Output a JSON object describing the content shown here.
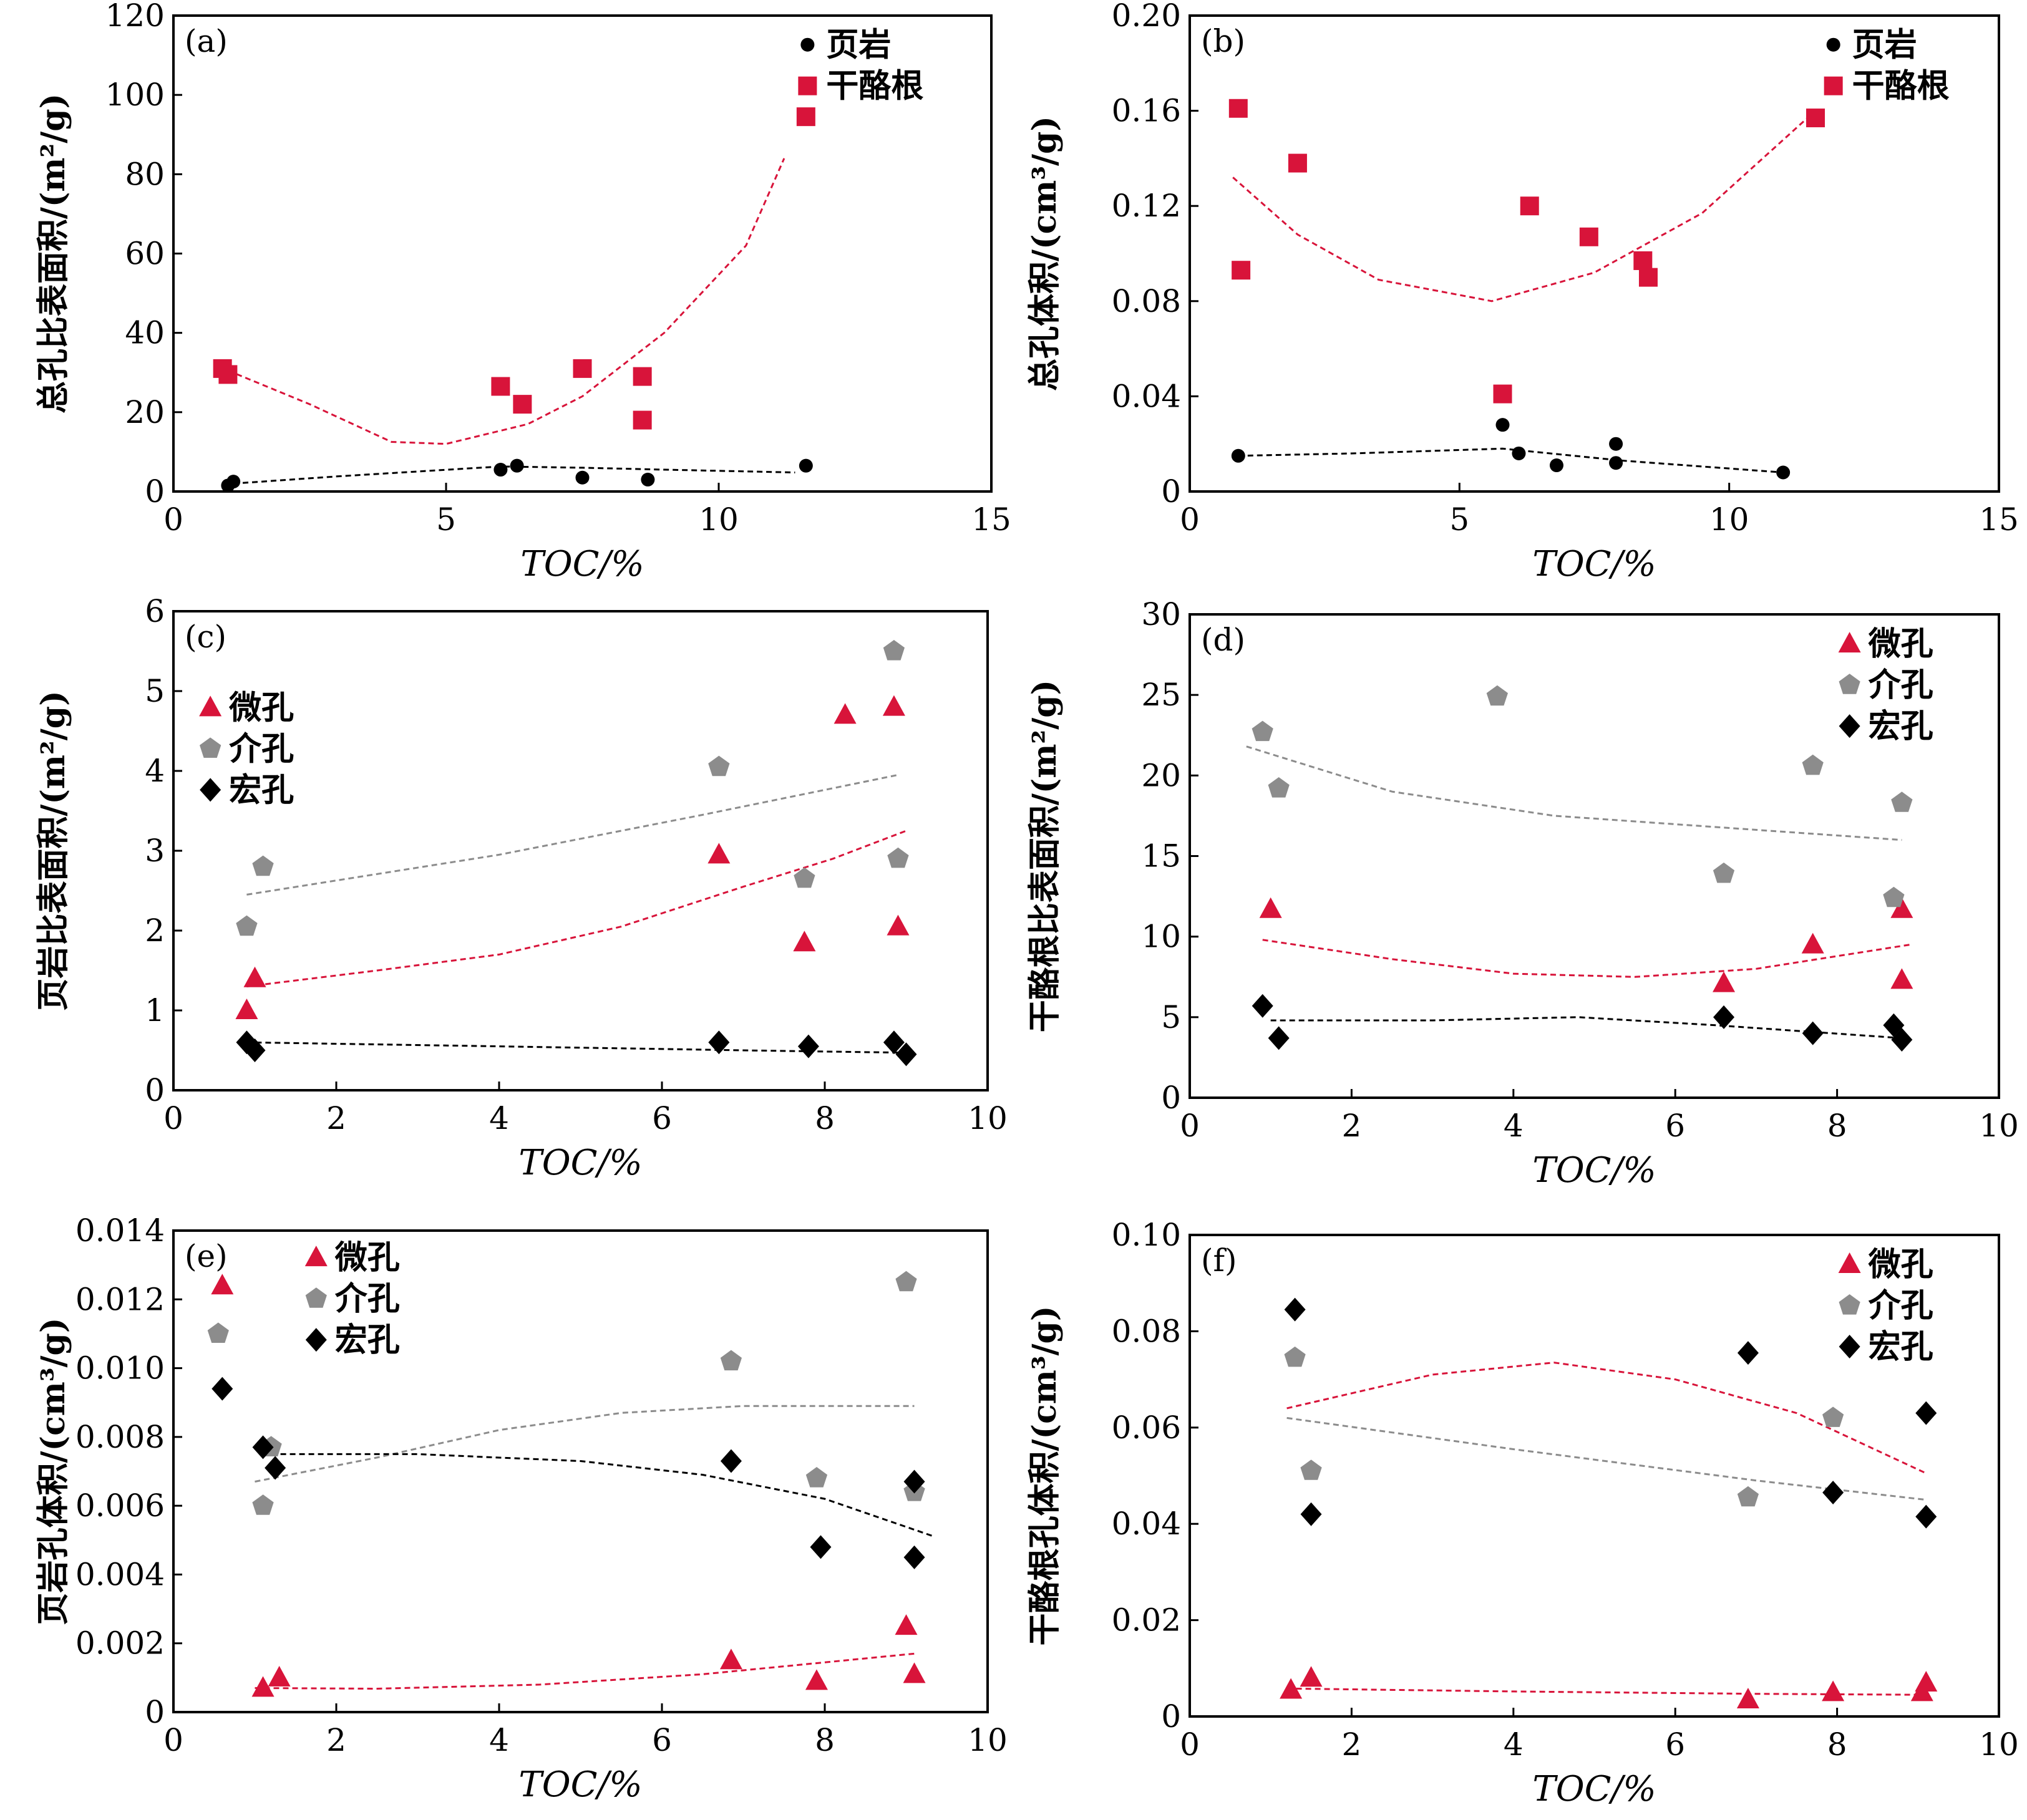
{
  "colors": {
    "red": "#d8143a",
    "gray": "#8c8c8c",
    "black": "#000000"
  },
  "chart_data": [
    {
      "type": "scatter",
      "tag": "(a)",
      "xlabel": "TOC/%",
      "ylabel": "总孔比表面积/(m²/g)",
      "xlim": [
        0,
        15
      ],
      "ylim": [
        0,
        120
      ],
      "xticks": [
        0,
        5,
        10,
        15
      ],
      "yticks": [
        0,
        20,
        40,
        60,
        80,
        100,
        120
      ],
      "legend_position": "top-right",
      "series": [
        {
          "name": "页岩",
          "marker": "circle",
          "color": "#000000",
          "points": [
            [
              1.0,
              1.5
            ],
            [
              1.1,
              2.5
            ],
            [
              6.0,
              5.5
            ],
            [
              6.3,
              6.5
            ],
            [
              7.5,
              3.5
            ],
            [
              8.7,
              3.0
            ],
            [
              11.6,
              6.5
            ]
          ],
          "trend": [
            [
              1.1,
              2.0
            ],
            [
              3.0,
              3.8
            ],
            [
              6.0,
              6.3
            ],
            [
              7.5,
              6.0
            ],
            [
              9.0,
              5.5
            ],
            [
              11.4,
              4.8
            ]
          ]
        },
        {
          "name": "干酪根",
          "marker": "square",
          "color": "#d8143a",
          "points": [
            [
              0.9,
              31
            ],
            [
              1.0,
              29.5
            ],
            [
              6.0,
              26.5
            ],
            [
              6.4,
              22
            ],
            [
              7.5,
              31
            ],
            [
              8.6,
              29
            ],
            [
              8.6,
              18
            ],
            [
              11.6,
              94.5
            ]
          ],
          "trend": [
            [
              1.0,
              30.5
            ],
            [
              2.5,
              22
            ],
            [
              4.0,
              12.5
            ],
            [
              5.0,
              12
            ],
            [
              6.5,
              17
            ],
            [
              7.5,
              24
            ],
            [
              9.0,
              40
            ],
            [
              10.5,
              62
            ],
            [
              11.2,
              84
            ]
          ]
        }
      ]
    },
    {
      "type": "scatter",
      "tag": "(b)",
      "xlabel": "TOC/%",
      "ylabel": "总孔体积/(cm³/g)",
      "xlim": [
        0,
        15
      ],
      "ylim": [
        0,
        0.2
      ],
      "xticks": [
        0,
        5,
        10,
        15
      ],
      "yticks": [
        0,
        0.04,
        0.08,
        0.12,
        0.16,
        0.2
      ],
      "ytick_labels": [
        "0",
        "0.04",
        "0.08",
        "0.12",
        "0.16",
        "0.20"
      ],
      "legend_position": "top-right",
      "series": [
        {
          "name": "页岩",
          "marker": "circle",
          "color": "#000000",
          "points": [
            [
              0.9,
              0.015
            ],
            [
              5.8,
              0.028
            ],
            [
              6.1,
              0.016
            ],
            [
              6.8,
              0.011
            ],
            [
              7.9,
              0.02
            ],
            [
              7.9,
              0.012
            ],
            [
              11.0,
              0.008
            ]
          ],
          "trend": [
            [
              0.9,
              0.015
            ],
            [
              3.0,
              0.016
            ],
            [
              5.8,
              0.018
            ],
            [
              8.0,
              0.013
            ],
            [
              11.0,
              0.008
            ]
          ]
        },
        {
          "name": "干酪根",
          "marker": "square",
          "color": "#d8143a",
          "points": [
            [
              0.9,
              0.161
            ],
            [
              0.95,
              0.093
            ],
            [
              2.0,
              0.138
            ],
            [
              5.8,
              0.041
            ],
            [
              6.3,
              0.12
            ],
            [
              7.4,
              0.107
            ],
            [
              8.4,
              0.097
            ],
            [
              8.5,
              0.09
            ],
            [
              11.6,
              0.157
            ]
          ],
          "trend": [
            [
              0.8,
              0.132
            ],
            [
              2.0,
              0.108
            ],
            [
              3.5,
              0.089
            ],
            [
              5.6,
              0.08
            ],
            [
              7.5,
              0.092
            ],
            [
              9.5,
              0.117
            ],
            [
              11.5,
              0.158
            ]
          ]
        }
      ]
    },
    {
      "type": "scatter",
      "tag": "(c)",
      "xlabel": "TOC/%",
      "ylabel": "页岩比表面积/(m²/g)",
      "xlim": [
        0,
        10
      ],
      "ylim": [
        0,
        6
      ],
      "xticks": [
        0,
        2,
        4,
        6,
        8,
        10
      ],
      "yticks": [
        0,
        1,
        2,
        3,
        4,
        5,
        6
      ],
      "legend_position": "top-left",
      "series": [
        {
          "name": "微孔",
          "marker": "triangle",
          "color": "#d8143a",
          "points": [
            [
              0.9,
              1.0
            ],
            [
              1.0,
              1.4
            ],
            [
              6.7,
              2.95
            ],
            [
              7.75,
              1.85
            ],
            [
              8.25,
              4.7
            ],
            [
              8.85,
              4.8
            ],
            [
              8.9,
              2.05
            ]
          ],
          "trend": [
            [
              0.9,
              1.3
            ],
            [
              2.5,
              1.5
            ],
            [
              4.0,
              1.7
            ],
            [
              5.5,
              2.05
            ],
            [
              7.0,
              2.55
            ],
            [
              8.1,
              2.9
            ],
            [
              9.0,
              3.25
            ]
          ]
        },
        {
          "name": "介孔",
          "marker": "pentagon",
          "color": "#8c8c8c",
          "points": [
            [
              0.9,
              2.05
            ],
            [
              1.1,
              2.8
            ],
            [
              6.7,
              4.05
            ],
            [
              7.75,
              2.65
            ],
            [
              8.85,
              5.5
            ],
            [
              8.9,
              2.9
            ]
          ],
          "trend": [
            [
              0.9,
              2.45
            ],
            [
              4.0,
              2.95
            ],
            [
              6.5,
              3.45
            ],
            [
              8.9,
              3.95
            ]
          ]
        },
        {
          "name": "宏孔",
          "marker": "diamond",
          "color": "#000000",
          "points": [
            [
              0.9,
              0.6
            ],
            [
              1.0,
              0.5
            ],
            [
              6.7,
              0.6
            ],
            [
              7.8,
              0.55
            ],
            [
              8.85,
              0.6
            ],
            [
              9.0,
              0.45
            ]
          ],
          "trend": [
            [
              0.9,
              0.6
            ],
            [
              4.0,
              0.55
            ],
            [
              7.0,
              0.5
            ],
            [
              9.0,
              0.47
            ]
          ]
        }
      ]
    },
    {
      "type": "scatter",
      "tag": "(d)",
      "xlabel": "TOC/%",
      "ylabel": "干酪根比表面积/(m²/g)",
      "xlim": [
        0,
        10
      ],
      "ylim": [
        0,
        30
      ],
      "xticks": [
        0,
        2,
        4,
        6,
        8,
        10
      ],
      "yticks": [
        0,
        5,
        10,
        15,
        20,
        25,
        30
      ],
      "legend_position": "top-right",
      "series": [
        {
          "name": "微孔",
          "marker": "triangle",
          "color": "#d8143a",
          "points": [
            [
              1.0,
              11.7
            ],
            [
              6.6,
              7.1
            ],
            [
              7.7,
              9.5
            ],
            [
              8.8,
              11.7
            ],
            [
              8.8,
              7.3
            ]
          ],
          "trend": [
            [
              0.9,
              9.8
            ],
            [
              2.5,
              8.6
            ],
            [
              4.0,
              7.7
            ],
            [
              5.5,
              7.5
            ],
            [
              7.0,
              8.0
            ],
            [
              8.9,
              9.5
            ]
          ]
        },
        {
          "name": "介孔",
          "marker": "pentagon",
          "color": "#8c8c8c",
          "points": [
            [
              0.9,
              22.7
            ],
            [
              1.1,
              19.2
            ],
            [
              3.8,
              24.9
            ],
            [
              6.6,
              13.9
            ],
            [
              7.7,
              20.6
            ],
            [
              8.7,
              12.4
            ],
            [
              8.8,
              18.3
            ]
          ],
          "trend": [
            [
              0.7,
              21.8
            ],
            [
              2.5,
              19.0
            ],
            [
              4.5,
              17.5
            ],
            [
              6.5,
              16.8
            ],
            [
              8.8,
              16.0
            ]
          ]
        },
        {
          "name": "宏孔",
          "marker": "diamond",
          "color": "#000000",
          "points": [
            [
              0.9,
              5.7
            ],
            [
              1.1,
              3.7
            ],
            [
              6.6,
              5.0
            ],
            [
              7.7,
              4.0
            ],
            [
              8.7,
              4.5
            ],
            [
              8.8,
              3.6
            ]
          ],
          "trend": [
            [
              1.0,
              4.8
            ],
            [
              3.0,
              4.8
            ],
            [
              4.8,
              5.0
            ],
            [
              6.5,
              4.5
            ],
            [
              8.8,
              3.7
            ]
          ]
        }
      ]
    },
    {
      "type": "scatter",
      "tag": "(e)",
      "xlabel": "TOC/%",
      "ylabel": "页岩孔体积/(cm³/g)",
      "xlim": [
        0,
        10
      ],
      "ylim": [
        0,
        0.014
      ],
      "xticks": [
        0,
        2,
        4,
        6,
        8,
        10
      ],
      "yticks": [
        0,
        0.002,
        0.004,
        0.006,
        0.008,
        0.01,
        0.012,
        0.014
      ],
      "ytick_labels": [
        "0",
        "0.002",
        "0.004",
        "0.006",
        "0.008",
        "0.010",
        "0.012",
        "0.014"
      ],
      "legend_position": "top-left",
      "series": [
        {
          "name": "微孔",
          "marker": "triangle",
          "color": "#d8143a",
          "points": [
            [
              0.6,
              0.0124
            ],
            [
              1.1,
              0.0007
            ],
            [
              1.3,
              0.001
            ],
            [
              6.85,
              0.0015
            ],
            [
              7.9,
              0.0009
            ],
            [
              9.0,
              0.0025
            ],
            [
              9.1,
              0.0011
            ]
          ],
          "trend": [
            [
              1.0,
              0.0007
            ],
            [
              2.5,
              0.00068
            ],
            [
              4.5,
              0.0008
            ],
            [
              6.5,
              0.0011
            ],
            [
              9.1,
              0.0017
            ]
          ]
        },
        {
          "name": "介孔",
          "marker": "pentagon",
          "color": "#8c8c8c",
          "points": [
            [
              0.55,
              0.011
            ],
            [
              1.1,
              0.006
            ],
            [
              1.2,
              0.0077
            ],
            [
              6.85,
              0.0102
            ],
            [
              7.9,
              0.0068
            ],
            [
              9.0,
              0.0125
            ],
            [
              9.1,
              0.0064
            ]
          ],
          "trend": [
            [
              1.0,
              0.0067
            ],
            [
              2.5,
              0.0074
            ],
            [
              4.0,
              0.0082
            ],
            [
              5.5,
              0.0087
            ],
            [
              7.0,
              0.0089
            ],
            [
              9.1,
              0.0089
            ]
          ]
        },
        {
          "name": "宏孔",
          "marker": "diamond",
          "color": "#000000",
          "points": [
            [
              0.6,
              0.0094
            ],
            [
              1.1,
              0.0077
            ],
            [
              1.25,
              0.0071
            ],
            [
              6.85,
              0.0073
            ],
            [
              7.95,
              0.0048
            ],
            [
              9.1,
              0.0067
            ],
            [
              9.1,
              0.0045
            ]
          ],
          "trend": [
            [
              1.2,
              0.0075
            ],
            [
              3.0,
              0.0075
            ],
            [
              5.0,
              0.0073
            ],
            [
              6.5,
              0.0069
            ],
            [
              8.0,
              0.0062
            ],
            [
              9.35,
              0.0051
            ]
          ]
        }
      ]
    },
    {
      "type": "scatter",
      "tag": "(f)",
      "xlabel": "TOC/%",
      "ylabel": "干酪根孔体积/(cm³/g)",
      "xlim": [
        0,
        10
      ],
      "ylim": [
        0,
        0.1
      ],
      "xticks": [
        0,
        2,
        4,
        6,
        8,
        10
      ],
      "yticks": [
        0,
        0.02,
        0.04,
        0.06,
        0.08,
        0.1
      ],
      "ytick_labels": [
        "0",
        "0.02",
        "0.04",
        "0.06",
        "0.08",
        "0.10"
      ],
      "legend_position": "top-right",
      "series": [
        {
          "name": "微孔",
          "marker": "triangle",
          "color": "#d8143a",
          "points": [
            [
              1.25,
              0.0055
            ],
            [
              1.5,
              0.008
            ],
            [
              6.9,
              0.0035
            ],
            [
              7.95,
              0.005
            ],
            [
              9.05,
              0.005
            ],
            [
              9.1,
              0.007
            ]
          ],
          "trend": [
            [
              1.2,
              0.0058
            ],
            [
              4.0,
              0.0052
            ],
            [
              7.0,
              0.0047
            ],
            [
              9.1,
              0.0045
            ]
          ],
          "trend2": [
            [
              1.2,
              0.064
            ],
            [
              3.0,
              0.071
            ],
            [
              4.5,
              0.0735
            ],
            [
              6.0,
              0.07
            ],
            [
              7.5,
              0.063
            ],
            [
              9.1,
              0.0505
            ]
          ]
        },
        {
          "name": "介孔",
          "marker": "pentagon",
          "color": "#8c8c8c",
          "points": [
            [
              1.3,
              0.0745
            ],
            [
              1.5,
              0.051
            ],
            [
              6.9,
              0.0455
            ],
            [
              7.95,
              0.062
            ]
          ],
          "trend": [
            [
              1.2,
              0.062
            ],
            [
              4.0,
              0.0555
            ],
            [
              7.0,
              0.049
            ],
            [
              9.1,
              0.045
            ]
          ]
        },
        {
          "name": "宏孔",
          "marker": "diamond",
          "color": "#000000",
          "points": [
            [
              1.3,
              0.0845
            ],
            [
              1.5,
              0.042
            ],
            [
              6.9,
              0.0755
            ],
            [
              7.95,
              0.0465
            ],
            [
              9.1,
              0.063
            ],
            [
              9.1,
              0.0415
            ]
          ]
        }
      ]
    }
  ]
}
